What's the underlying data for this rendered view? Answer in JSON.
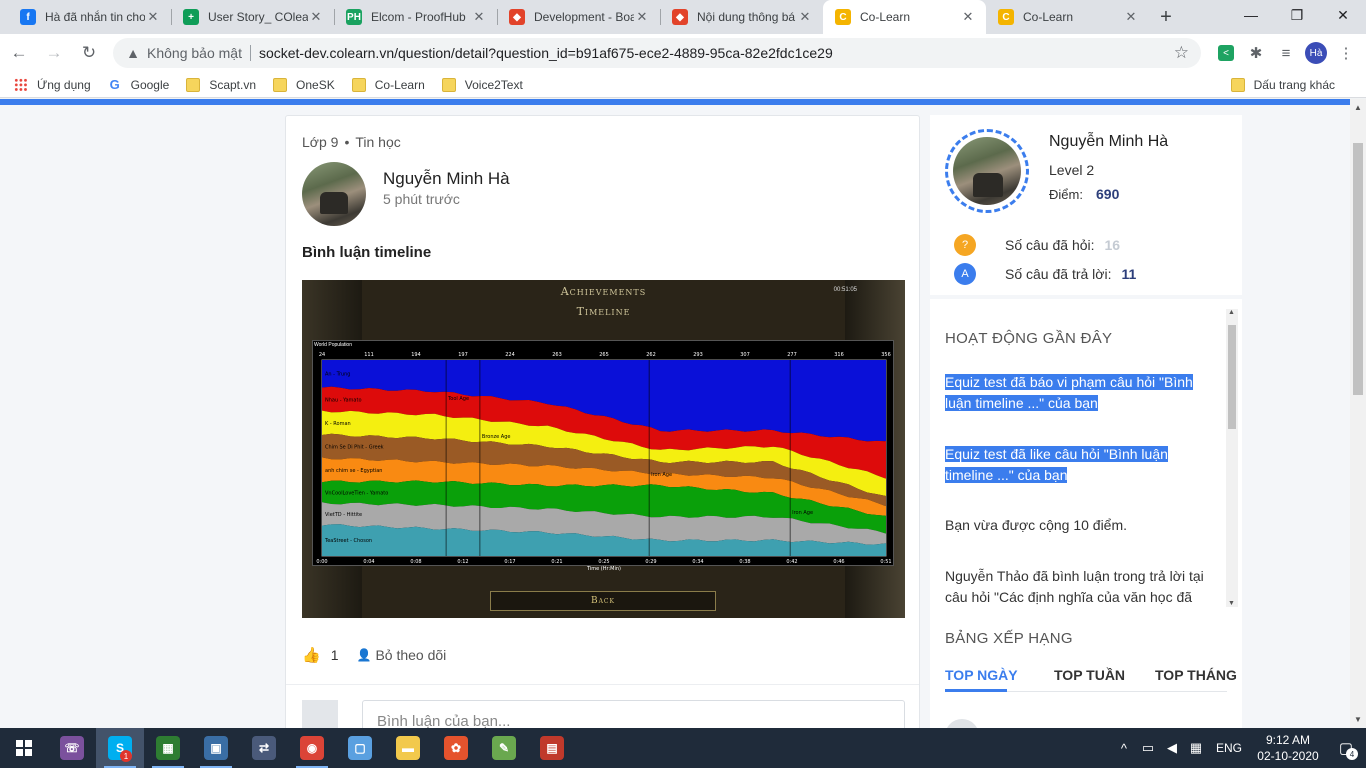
{
  "browser": {
    "tabs": [
      {
        "title": "Hà đã nhắn tin cho",
        "favicon": "facebook-icon",
        "color": "#1877f2",
        "glyph": "f",
        "active": false
      },
      {
        "title": "User Story_ COlear",
        "favicon": "sheets-icon",
        "color": "#0f9d58",
        "glyph": "+",
        "active": false
      },
      {
        "title": "Elcom - ProofHub",
        "favicon": "proofhub-icon",
        "color": "#1aa260",
        "glyph": "PH",
        "active": false
      },
      {
        "title": "Development - Boa",
        "favicon": "gitlab-icon",
        "color": "#e2432a",
        "glyph": "◆",
        "active": false
      },
      {
        "title": "Nội dung thông bá",
        "favicon": "gitlab-icon",
        "color": "#e2432a",
        "glyph": "◆",
        "active": false
      },
      {
        "title": "Co-Learn",
        "favicon": "colearn-icon",
        "color": "#f4b400",
        "glyph": "C",
        "active": true
      },
      {
        "title": "Co-Learn",
        "favicon": "colearn-icon",
        "color": "#f4b400",
        "glyph": "C",
        "active": false
      }
    ],
    "security_label": "Không bảo mật",
    "url": "socket-dev.colearn.vn/question/detail?question_id=b91af675-ece2-4889-95ca-82e2fdc1ce29",
    "profile_initials": "Hà",
    "bookmarks": [
      {
        "label": "Ứng dụng",
        "icon": "apps"
      },
      {
        "label": "Google",
        "icon": "google"
      },
      {
        "label": "Scapt.vn",
        "icon": "folder"
      },
      {
        "label": "OneSK",
        "icon": "folder"
      },
      {
        "label": "Co-Learn",
        "icon": "folder"
      },
      {
        "label": "Voice2Text",
        "icon": "folder"
      }
    ],
    "other_bookmarks": "Dấu trang khác"
  },
  "question": {
    "grade": "Lớp 9",
    "subject": "Tin học",
    "author": "Nguyễn Minh Hà",
    "time_ago": "5 phút trước",
    "title": "Bình luận timeline",
    "likes": "1",
    "follow_label": "Bỏ theo dõi",
    "comment_placeholder": "Bình luận của bạn..."
  },
  "screenshot": {
    "header1": "Achievements",
    "header2": "Timeline",
    "clock": "00:51:05",
    "world_population": "World Population",
    "top_values": [
      "24",
      "111",
      "194",
      "197",
      "224",
      "263",
      "265",
      "262",
      "293",
      "307",
      "277",
      "316",
      "356"
    ],
    "time_ticks": [
      "0:00",
      "0:04",
      "0:08",
      "0:12",
      "0:17",
      "0:21",
      "0:25",
      "0:29",
      "0:34",
      "0:38",
      "0:42",
      "0:46",
      "0:51"
    ],
    "time_axis": "Time (Hr:Min)",
    "back_label": "Back",
    "bands": [
      {
        "label": "An - Trung",
        "color": "#0a10d8"
      },
      {
        "label": "Nhau - Yamato",
        "color": "#dd0b0b"
      },
      {
        "label": "K - Roman",
        "color": "#f4ef10"
      },
      {
        "label": "Chim Se Di Phit - Greek",
        "color": "#9a5a25"
      },
      {
        "label": "anh chim se - Egyptian",
        "color": "#f98a12"
      },
      {
        "label": "VnCoolLoveTien - Yamato",
        "color": "#0aa00a"
      },
      {
        "label": "VietTD - Hittite",
        "color": "#a9a9a9"
      },
      {
        "label": "TeaStreet - Choson",
        "color": "#3ea0b0"
      }
    ],
    "age_markers": [
      "Tool Age",
      "Bronze Age",
      "Iron Age"
    ]
  },
  "sidebar": {
    "name": "Nguyễn Minh Hà",
    "level": "Level 2",
    "points_label": "Điểm:",
    "points": "690",
    "asked_label": "Số câu đã hỏi:",
    "asked": "16",
    "answered_label": "Số câu đã trả lời:",
    "answered": "11",
    "activity_title": "HOẠT ĐỘNG GẦN ĐÂY",
    "activity": [
      "Equiz test đã báo vi phạm câu hỏi \"Bình luận timeline ...\" của bạn",
      "Equiz test đã like câu hỏi \"Bình luận timeline ...\" của bạn",
      "Bạn vừa được cộng 10 điểm.",
      "Nguyễn Thảo đã bình luận trong trả lời tại câu hỏi \"Các định nghĩa của văn học đã"
    ],
    "ranking_title": "BẢNG XẾP HẠNG",
    "ranking_tabs": [
      "TOP NGÀY",
      "TOP TUẦN",
      "TOP THÁNG"
    ]
  },
  "taskbar": {
    "apps": [
      {
        "name": "viber-icon",
        "color": "#7b519d",
        "glyph": "☏"
      },
      {
        "name": "skype-icon",
        "color": "#00aff0",
        "glyph": "S",
        "badge": "1"
      },
      {
        "name": "sheets-app-icon",
        "color": "#2e7d32",
        "glyph": "▦"
      },
      {
        "name": "remote-desktop-icon",
        "color": "#3a6ea5",
        "glyph": "▣"
      },
      {
        "name": "network-tool-icon",
        "color": "#4a5a7a",
        "glyph": "⇄"
      },
      {
        "name": "chrome-icon",
        "color": "#db4437",
        "glyph": "◉"
      },
      {
        "name": "cube-app-icon",
        "color": "#5aa0e0",
        "glyph": "▢"
      },
      {
        "name": "file-explorer-icon",
        "color": "#f2c94c",
        "glyph": "▬"
      },
      {
        "name": "color-app-icon",
        "color": "#e5532d",
        "glyph": "✿"
      },
      {
        "name": "paint-icon",
        "color": "#6aa84f",
        "glyph": "✎"
      },
      {
        "name": "redis-icon",
        "color": "#c0392b",
        "glyph": "▤"
      }
    ],
    "language": "ENG",
    "time": "9:12 AM",
    "date": "02-10-2020",
    "notifications": "4"
  }
}
